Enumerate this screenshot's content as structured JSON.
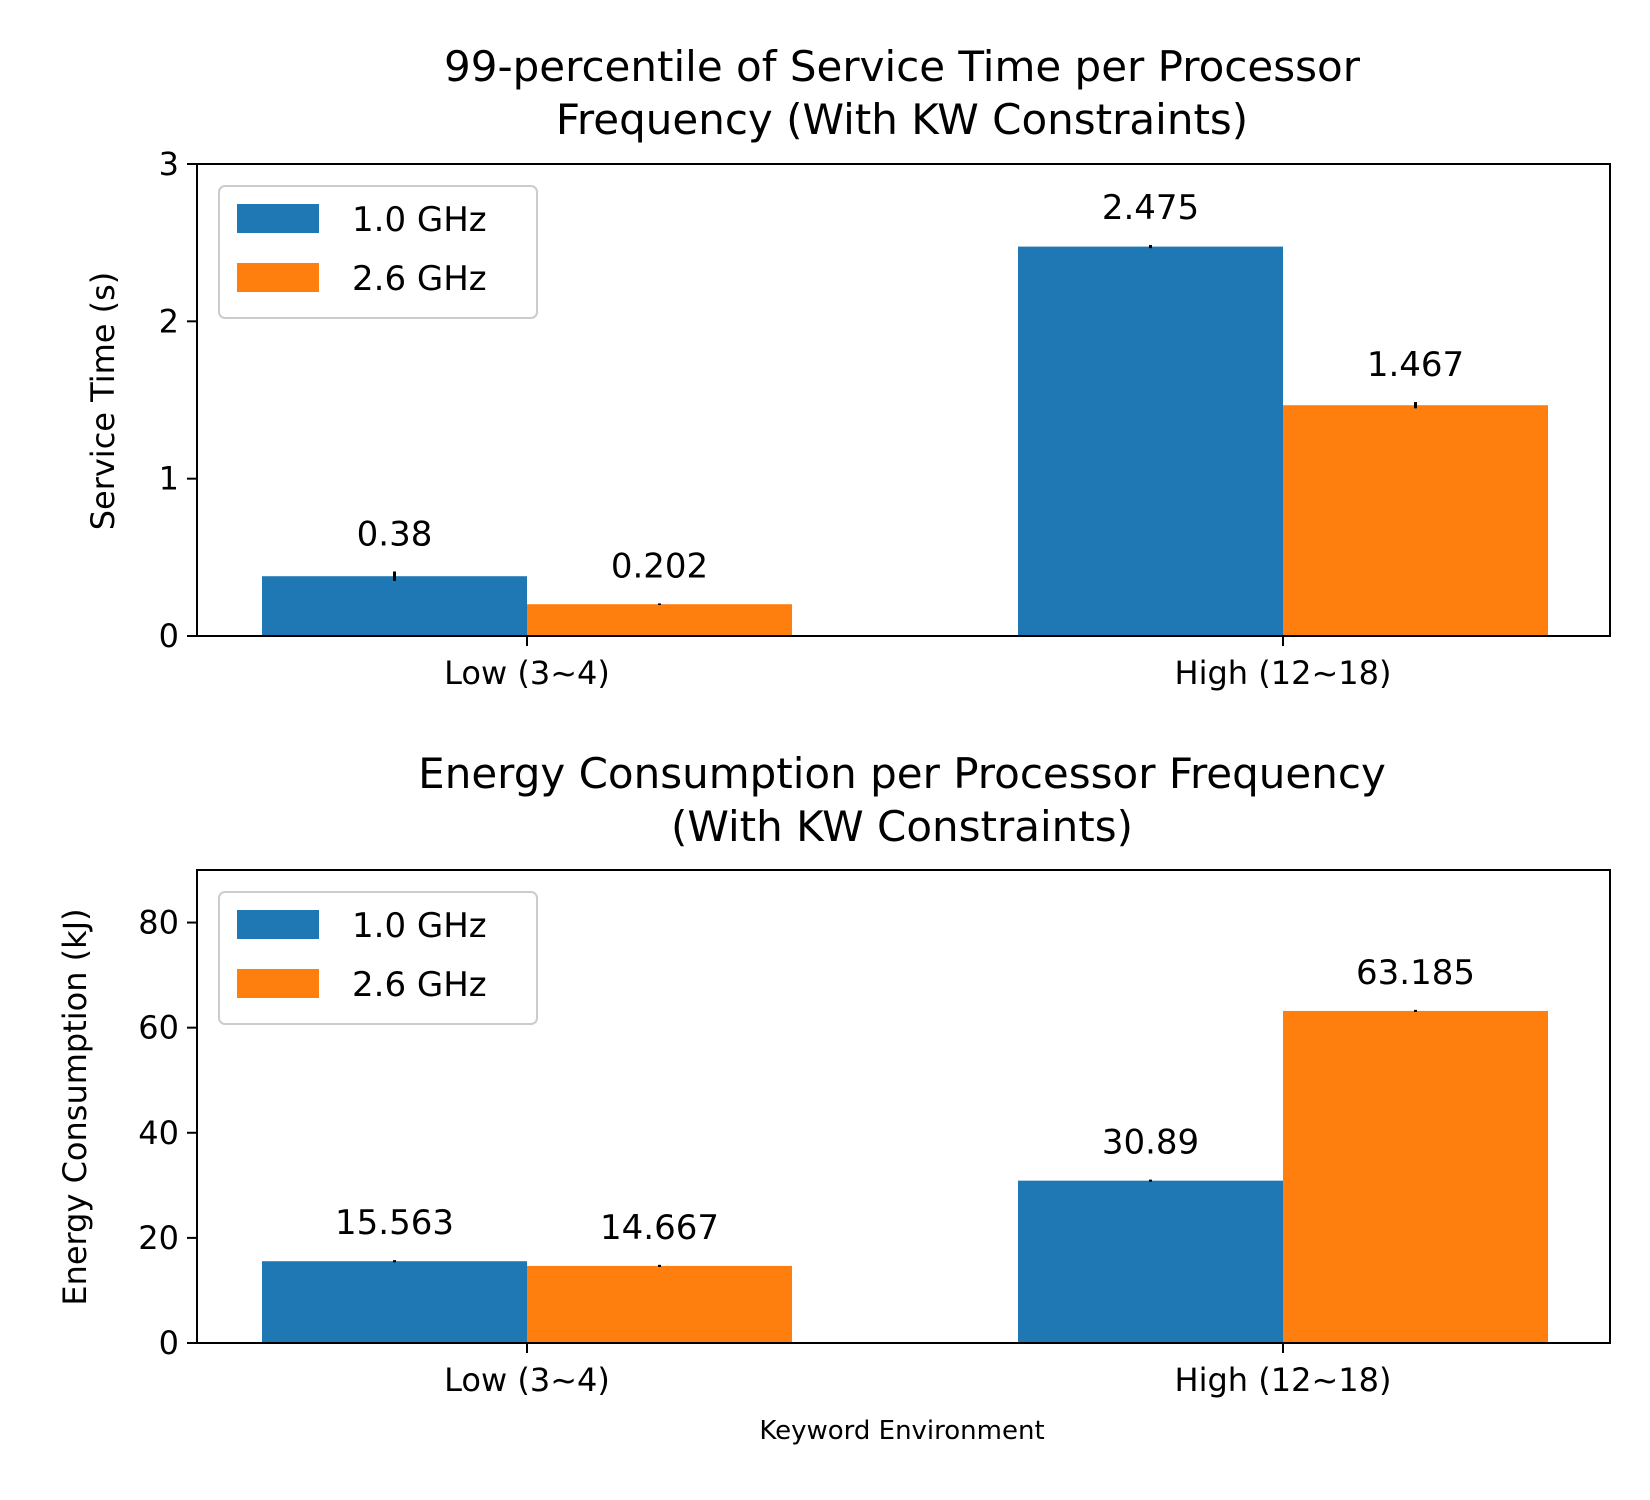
{
  "chart_data": [
    {
      "type": "bar",
      "title": "99-percentile of Service Time per Processor Frequency (With KW Constraints)",
      "title_lines": [
        "99-percentile of Service Time per Processor",
        "Frequency (With KW Constraints)"
      ],
      "xlabel": "",
      "ylabel": "Service Time (s)",
      "ylim": [
        0,
        3
      ],
      "yticks": [
        0,
        1,
        2,
        3
      ],
      "categories": [
        "Low (3~4)",
        "High (12~18)"
      ],
      "series": [
        {
          "name": "1.0 GHz",
          "color": "#1f77b4",
          "values": [
            0.38,
            2.475
          ],
          "labels": [
            "0.38",
            "2.475"
          ],
          "errors": [
            0.03,
            0.01
          ]
        },
        {
          "name": "2.6 GHz",
          "color": "#ff7f0e",
          "values": [
            0.202,
            1.467
          ],
          "labels": [
            "0.202",
            "1.467"
          ],
          "errors": [
            0.005,
            0.02
          ]
        }
      ],
      "legend": "upper left",
      "grid": false
    },
    {
      "type": "bar",
      "title": "Energy Consumption per Processor Frequency (With KW Constraints)",
      "title_lines": [
        "Energy Consumption per Processor Frequency",
        "(With KW Constraints)"
      ],
      "xlabel": "Keyword Environment",
      "ylabel": "Energy Consumption (kJ)",
      "ylim": [
        0,
        90
      ],
      "yticks": [
        0,
        20,
        40,
        60,
        80
      ],
      "categories": [
        "Low (3~4)",
        "High (12~18)"
      ],
      "series": [
        {
          "name": "1.0 GHz",
          "color": "#1f77b4",
          "values": [
            15.563,
            30.89
          ],
          "labels": [
            "15.563",
            "30.89"
          ],
          "errors": [
            0.2,
            0.2
          ]
        },
        {
          "name": "2.6 GHz",
          "color": "#ff7f0e",
          "values": [
            14.667,
            63.185
          ],
          "labels": [
            "14.667",
            "63.185"
          ],
          "errors": [
            0.2,
            0.2
          ]
        }
      ],
      "legend": "upper left",
      "grid": false
    }
  ]
}
